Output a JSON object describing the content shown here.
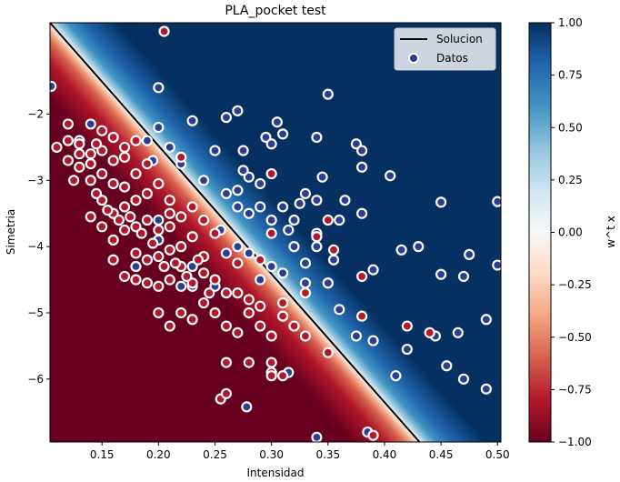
{
  "chart_data": {
    "type": "scatter",
    "title": "PLA_pocket test",
    "xlabel": "Intensidad",
    "ylabel": "Simetria",
    "xlim": [
      0.104,
      0.503
    ],
    "ylim": [
      -6.95,
      -0.62
    ],
    "x_ticks": [
      0.15,
      0.2,
      0.25,
      0.3,
      0.35,
      0.4,
      0.45,
      0.5
    ],
    "x_tick_labels": [
      "0.15",
      "0.20",
      "0.25",
      "0.30",
      "0.35",
      "0.40",
      "0.45",
      "0.50"
    ],
    "y_ticks": [
      -2,
      -3,
      -4,
      -5,
      -6
    ],
    "y_tick_labels": [
      "−2",
      "−3",
      "−4",
      "−5",
      "−6"
    ],
    "grid": false,
    "legend_position": "top-right",
    "legend": {
      "line_label": "Solucion",
      "points_label": "Datos"
    },
    "decision_line": {
      "name": "Solucion",
      "points": [
        [
          0.104,
          -0.62
        ],
        [
          0.431,
          -6.95
        ]
      ]
    },
    "background": {
      "type": "diverging-colormap",
      "colormap": "RdBu",
      "transition_width_intensidad": 0.06,
      "colors": {
        "negative": "#67001f",
        "mid": "#f7f7f7",
        "positive": "#053061"
      }
    },
    "colorbar": {
      "label": "w^t x",
      "range": [
        -1.0,
        1.0
      ],
      "ticks": [
        1.0,
        0.75,
        0.5,
        0.25,
        0.0,
        -0.25,
        -0.5,
        -0.75,
        -1.0
      ],
      "tick_labels": [
        "1.00",
        "0.75",
        "0.50",
        "0.25",
        "0.00",
        "−0.25",
        "−0.50",
        "−0.75",
        "−1.00"
      ]
    },
    "series": [
      {
        "name": "Datos (class +1)",
        "color": "#2c3e91",
        "points": [
          [
            0.105,
            -1.58
          ],
          [
            0.2,
            -1.6
          ],
          [
            0.305,
            -2.12
          ],
          [
            0.35,
            -1.7
          ],
          [
            0.405,
            -2.93
          ],
          [
            0.45,
            -3.33
          ],
          [
            0.5,
            -3.32
          ],
          [
            0.415,
            -4.05
          ],
          [
            0.43,
            -4.0
          ],
          [
            0.47,
            -4.45
          ],
          [
            0.45,
            -4.42
          ],
          [
            0.475,
            -4.12
          ],
          [
            0.39,
            -4.35
          ],
          [
            0.36,
            -4.95
          ],
          [
            0.375,
            -5.35
          ],
          [
            0.39,
            -5.42
          ],
          [
            0.42,
            -5.55
          ],
          [
            0.445,
            -5.35
          ],
          [
            0.465,
            -5.3
          ],
          [
            0.5,
            -4.28
          ],
          [
            0.49,
            -5.1
          ],
          [
            0.455,
            -5.8
          ],
          [
            0.47,
            -6.0
          ],
          [
            0.49,
            -6.15
          ],
          [
            0.41,
            -5.95
          ],
          [
            0.385,
            -6.8
          ],
          [
            0.34,
            -6.88
          ],
          [
            0.278,
            -6.42
          ],
          [
            0.315,
            -5.9
          ],
          [
            0.35,
            -4.55
          ],
          [
            0.33,
            -4.25
          ],
          [
            0.33,
            -4.55
          ],
          [
            0.34,
            -4.0
          ],
          [
            0.355,
            -4.2
          ],
          [
            0.32,
            -4.0
          ],
          [
            0.315,
            -3.75
          ],
          [
            0.3,
            -3.6
          ],
          [
            0.28,
            -3.5
          ],
          [
            0.29,
            -3.05
          ],
          [
            0.28,
            -2.95
          ],
          [
            0.275,
            -2.85
          ],
          [
            0.27,
            -3.15
          ],
          [
            0.29,
            -3.4
          ],
          [
            0.31,
            -3.4
          ],
          [
            0.325,
            -3.35
          ],
          [
            0.33,
            -3.2
          ],
          [
            0.345,
            -2.95
          ],
          [
            0.34,
            -3.8
          ],
          [
            0.36,
            -3.6
          ],
          [
            0.365,
            -3.3
          ],
          [
            0.38,
            -3.5
          ],
          [
            0.375,
            -2.45
          ],
          [
            0.38,
            -2.55
          ],
          [
            0.38,
            -2.8
          ],
          [
            0.34,
            -2.35
          ],
          [
            0.31,
            -2.3
          ],
          [
            0.295,
            -2.35
          ],
          [
            0.3,
            -2.45
          ],
          [
            0.275,
            -2.55
          ],
          [
            0.27,
            -1.95
          ],
          [
            0.26,
            -2.05
          ],
          [
            0.25,
            -2.55
          ],
          [
            0.23,
            -2.1
          ],
          [
            0.2,
            -2.2
          ],
          [
            0.19,
            -2.4
          ],
          [
            0.21,
            -2.5
          ],
          [
            0.195,
            -2.7
          ],
          [
            0.22,
            -2.75
          ],
          [
            0.24,
            -3.0
          ],
          [
            0.26,
            -3.2
          ],
          [
            0.27,
            -3.4
          ],
          [
            0.255,
            -3.75
          ],
          [
            0.26,
            -4.1
          ],
          [
            0.27,
            -4.0
          ],
          [
            0.3,
            -4.3
          ],
          [
            0.31,
            -4.4
          ],
          [
            0.28,
            -4.1
          ],
          [
            0.29,
            -4.5
          ],
          [
            0.25,
            -4.6
          ],
          [
            0.22,
            -4.6
          ],
          [
            0.23,
            -4.3
          ],
          [
            0.14,
            -2.15
          ],
          [
            0.13,
            -2.4
          ],
          [
            0.18,
            -4.3
          ],
          [
            0.2,
            -3.6
          ],
          [
            0.2,
            -3.9
          ],
          [
            0.23,
            -4.6
          ],
          [
            0.34,
            -3.3
          ],
          [
            0.32,
            -3.6
          ],
          [
            0.35,
            -4.55
          ]
        ]
      },
      {
        "name": "Datos (class −1)",
        "color": "#b2182b",
        "points": [
          [
            0.205,
            -0.75
          ],
          [
            0.12,
            -2.15
          ],
          [
            0.11,
            -2.5
          ],
          [
            0.12,
            -2.4
          ],
          [
            0.13,
            -2.45
          ],
          [
            0.14,
            -2.6
          ],
          [
            0.13,
            -2.8
          ],
          [
            0.15,
            -2.55
          ],
          [
            0.16,
            -2.7
          ],
          [
            0.17,
            -2.65
          ],
          [
            0.15,
            -2.9
          ],
          [
            0.14,
            -3.0
          ],
          [
            0.16,
            -3.05
          ],
          [
            0.17,
            -3.1
          ],
          [
            0.18,
            -2.9
          ],
          [
            0.19,
            -2.75
          ],
          [
            0.15,
            -3.3
          ],
          [
            0.16,
            -3.5
          ],
          [
            0.17,
            -3.4
          ],
          [
            0.18,
            -3.3
          ],
          [
            0.19,
            -3.2
          ],
          [
            0.2,
            -3.05
          ],
          [
            0.21,
            -3.3
          ],
          [
            0.16,
            -3.9
          ],
          [
            0.17,
            -3.75
          ],
          [
            0.18,
            -3.7
          ],
          [
            0.19,
            -3.6
          ],
          [
            0.2,
            -3.75
          ],
          [
            0.21,
            -3.7
          ],
          [
            0.18,
            -4.1
          ],
          [
            0.19,
            -4.2
          ],
          [
            0.2,
            -4.15
          ],
          [
            0.21,
            -4.05
          ],
          [
            0.22,
            -4.0
          ],
          [
            0.23,
            -3.85
          ],
          [
            0.24,
            -4.15
          ],
          [
            0.22,
            -4.3
          ],
          [
            0.21,
            -4.5
          ],
          [
            0.2,
            -4.6
          ],
          [
            0.19,
            -4.55
          ],
          [
            0.2,
            -5.0
          ],
          [
            0.21,
            -5.2
          ],
          [
            0.22,
            -5.0
          ],
          [
            0.23,
            -5.1
          ],
          [
            0.24,
            -4.85
          ],
          [
            0.25,
            -5.0
          ],
          [
            0.26,
            -5.2
          ],
          [
            0.27,
            -5.3
          ],
          [
            0.28,
            -5.0
          ],
          [
            0.29,
            -5.2
          ],
          [
            0.3,
            -5.35
          ],
          [
            0.31,
            -5.05
          ],
          [
            0.32,
            -5.2
          ],
          [
            0.33,
            -5.35
          ],
          [
            0.27,
            -4.7
          ],
          [
            0.28,
            -4.8
          ],
          [
            0.29,
            -4.9
          ],
          [
            0.25,
            -4.5
          ],
          [
            0.26,
            -4.7
          ],
          [
            0.24,
            -4.4
          ],
          [
            0.23,
            -4.55
          ],
          [
            0.26,
            -5.75
          ],
          [
            0.255,
            -6.3
          ],
          [
            0.26,
            -6.22
          ],
          [
            0.28,
            -5.75
          ],
          [
            0.3,
            -5.75
          ],
          [
            0.3,
            -5.9
          ],
          [
            0.3,
            -5.95
          ],
          [
            0.31,
            -5.95
          ],
          [
            0.35,
            -5.6
          ],
          [
            0.39,
            -6.85
          ],
          [
            0.38,
            -5.05
          ],
          [
            0.38,
            -4.45
          ],
          [
            0.355,
            -4.05
          ],
          [
            0.42,
            -5.2
          ],
          [
            0.44,
            -5.3
          ],
          [
            0.13,
            -2.6
          ],
          [
            0.14,
            -2.75
          ],
          [
            0.12,
            -2.7
          ],
          [
            0.125,
            -3.0
          ],
          [
            0.145,
            -3.2
          ],
          [
            0.155,
            -3.45
          ],
          [
            0.165,
            -3.6
          ],
          [
            0.175,
            -3.55
          ],
          [
            0.185,
            -3.8
          ],
          [
            0.195,
            -3.95
          ],
          [
            0.205,
            -4.3
          ],
          [
            0.215,
            -4.25
          ],
          [
            0.225,
            -4.45
          ],
          [
            0.235,
            -4.2
          ],
          [
            0.245,
            -4.7
          ],
          [
            0.21,
            -3.5
          ],
          [
            0.22,
            -3.55
          ],
          [
            0.23,
            -3.4
          ],
          [
            0.24,
            -3.6
          ],
          [
            0.25,
            -3.8
          ],
          [
            0.17,
            -4.45
          ],
          [
            0.18,
            -4.5
          ],
          [
            0.16,
            -4.2
          ],
          [
            0.15,
            -3.7
          ],
          [
            0.14,
            -3.55
          ],
          [
            0.22,
            -2.65
          ],
          [
            0.18,
            -2.4
          ],
          [
            0.16,
            -2.35
          ],
          [
            0.15,
            -2.25
          ],
          [
            0.145,
            -2.45
          ],
          [
            0.17,
            -2.5
          ],
          [
            0.3,
            -2.9
          ],
          [
            0.35,
            -3.6
          ],
          [
            0.34,
            -3.85
          ],
          [
            0.3,
            -3.8
          ],
          [
            0.29,
            -4.2
          ],
          [
            0.27,
            -4.25
          ],
          [
            0.33,
            -4.7
          ],
          [
            0.31,
            -4.85
          ]
        ]
      }
    ]
  }
}
